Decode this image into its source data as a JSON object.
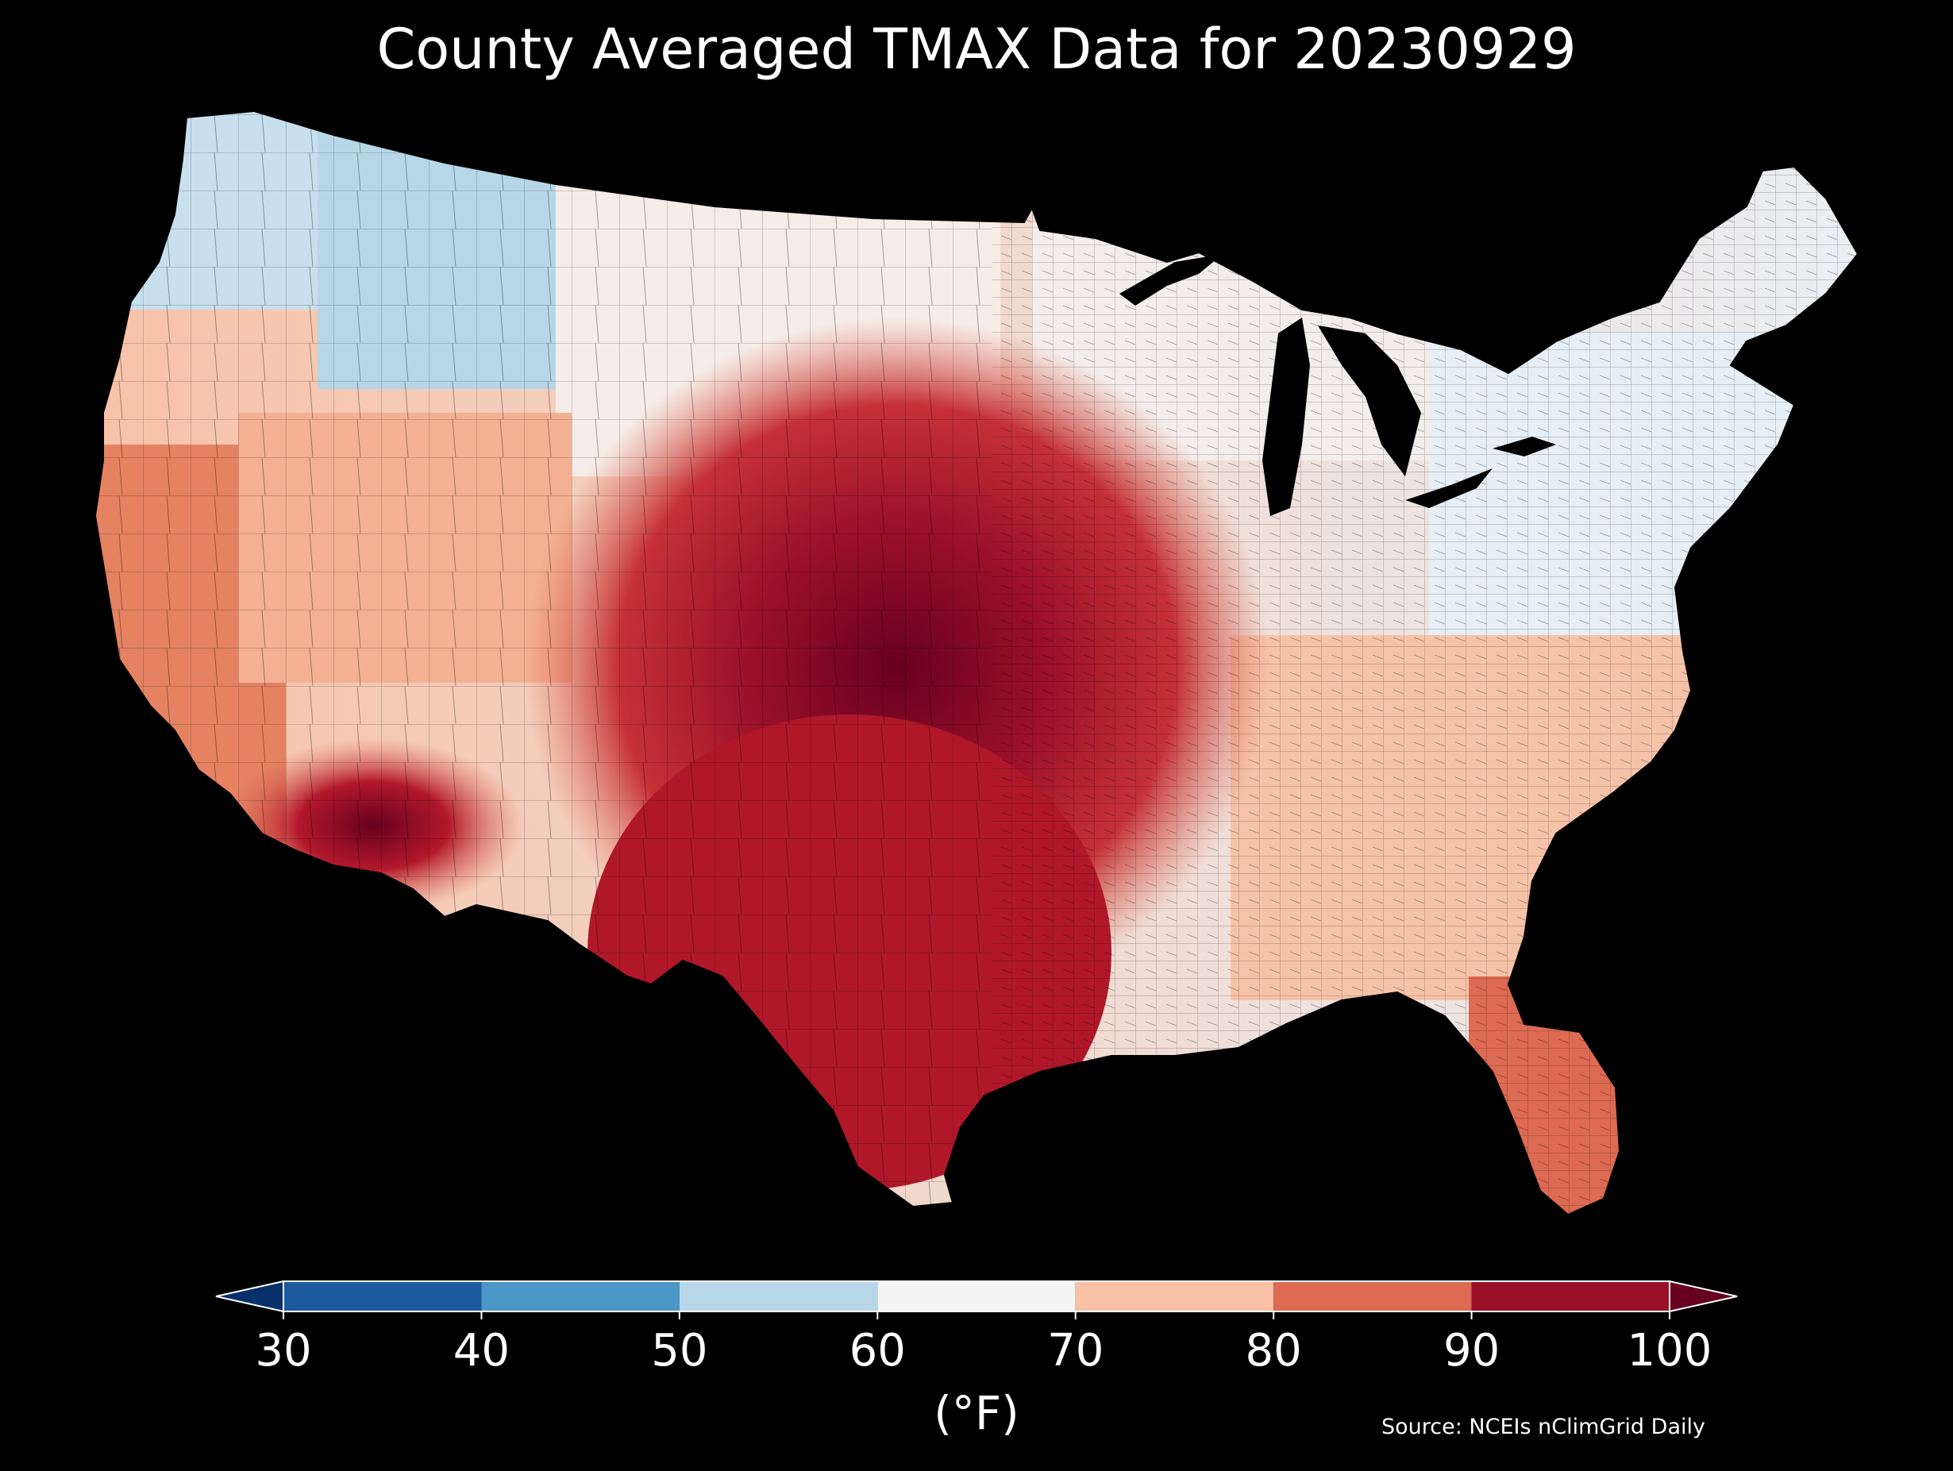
{
  "title": "County Averaged TMAX Data for 20230929",
  "colorbar": {
    "ticks": [
      "30",
      "40",
      "50",
      "60",
      "70",
      "80",
      "90",
      "100"
    ],
    "label": "(°F)",
    "bins": [
      {
        "from": 30,
        "to": 40,
        "color": "#1b5a9c"
      },
      {
        "from": 40,
        "to": 50,
        "color": "#4b98c8"
      },
      {
        "from": 50,
        "to": 60,
        "color": "#b7d7e8"
      },
      {
        "from": 60,
        "to": 70,
        "color": "#f4f4f4"
      },
      {
        "from": 70,
        "to": 80,
        "color": "#f8c0a4"
      },
      {
        "from": 80,
        "to": 90,
        "color": "#dd6a52"
      },
      {
        "from": 90,
        "to": 100,
        "color": "#9b1029"
      }
    ],
    "under_color": "#08306b",
    "over_color": "#67001f"
  },
  "source": "Source: NCEIs nClimGrid Daily",
  "map_regions": [
    {
      "name": "washington-oregon-coast",
      "value": 55
    },
    {
      "name": "northern-rockies",
      "value": 58
    },
    {
      "name": "northern-plains",
      "value": 68
    },
    {
      "name": "great-lakes",
      "value": 67
    },
    {
      "name": "northeast",
      "value": 66
    },
    {
      "name": "california",
      "value": 80
    },
    {
      "name": "great-basin",
      "value": 75
    },
    {
      "name": "arizona",
      "value": 92
    },
    {
      "name": "central-plains",
      "value": 95
    },
    {
      "name": "texas",
      "value": 92
    },
    {
      "name": "southeast",
      "value": 78
    },
    {
      "name": "florida",
      "value": 85
    }
  ]
}
